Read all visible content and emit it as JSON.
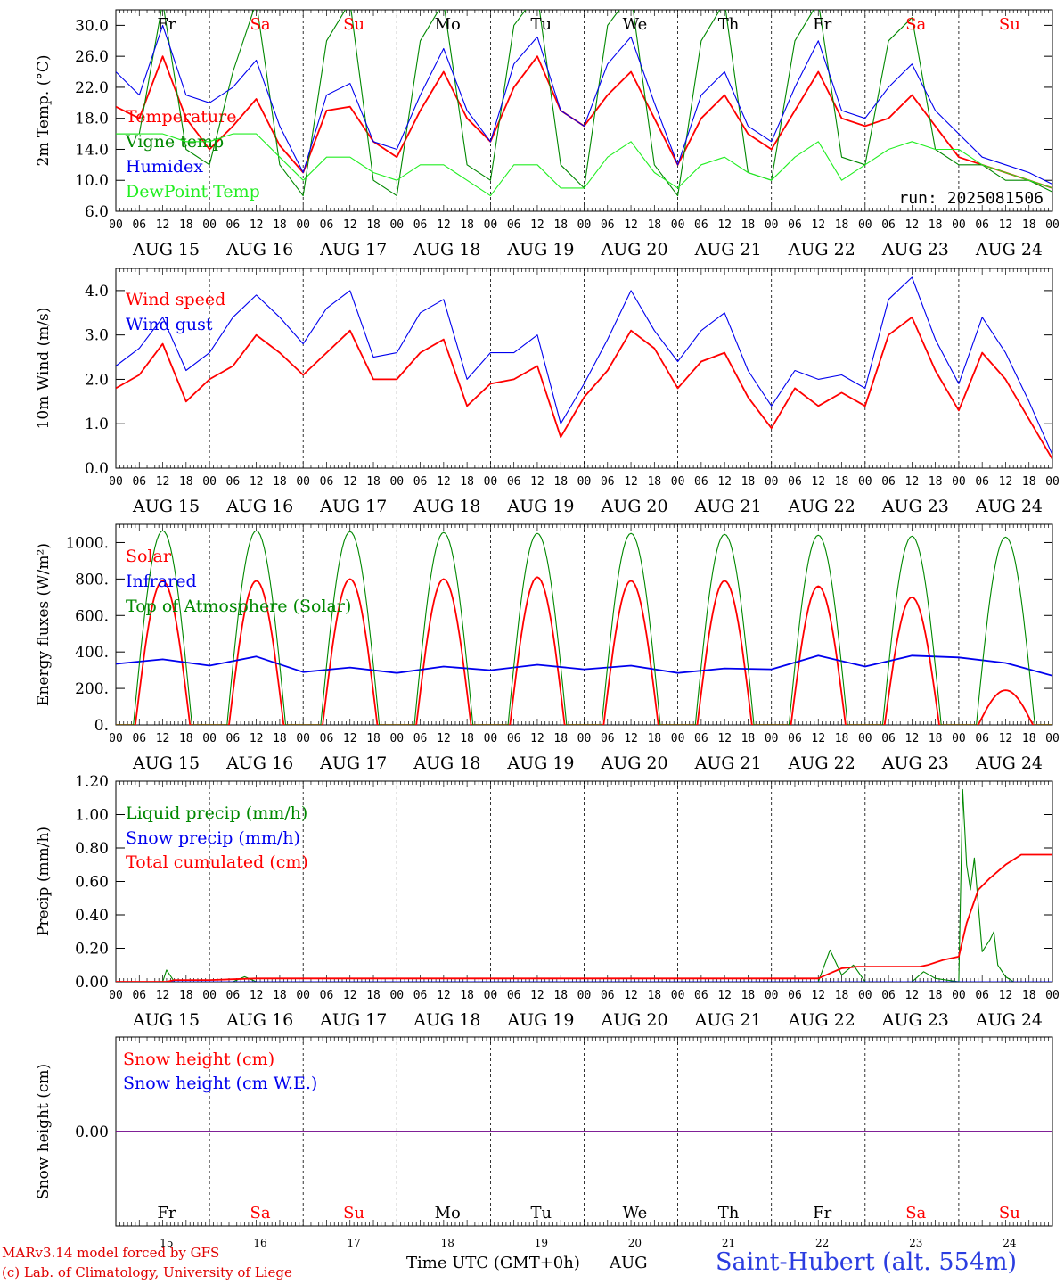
{
  "meta": {
    "credit_line1": "MARv3.14 model forced by GFS",
    "credit_line2": "(c) Lab. of Climatology, University of Liege",
    "x_title": "Time UTC (GMT+0h)",
    "x_month": "AUG",
    "station": "Saint-Hubert (alt. 554m)",
    "run_label": "run: 2025081506"
  },
  "colors": {
    "red": "#ff0000",
    "green": "#008800",
    "blue": "#0000ee",
    "lightgreen": "#22ee22"
  },
  "chart_data": {
    "type": "line",
    "time_axis": {
      "start": "2025-08-15 00 UTC",
      "days": [
        "AUG 15",
        "AUG 16",
        "AUG 17",
        "AUG 18",
        "AUG 19",
        "AUG 20",
        "AUG 21",
        "AUG 22",
        "AUG 23",
        "AUG 24"
      ],
      "hour_ticks": [
        "00",
        "06",
        "12",
        "18"
      ],
      "weekday_labels": [
        "Fr",
        "Sa",
        "Su",
        "Mo",
        "Tu",
        "We",
        "Th",
        "Fr",
        "Sa",
        "Su"
      ],
      "weekend_flags": [
        false,
        true,
        true,
        false,
        false,
        false,
        false,
        false,
        true,
        true
      ],
      "day_numbers": [
        "15",
        "16",
        "17",
        "18",
        "19",
        "20",
        "21",
        "22",
        "23",
        "24"
      ]
    },
    "panels": [
      {
        "id": "temperature",
        "ylabel": "2m Temp. (°C)",
        "ylim": [
          6.0,
          32.0
        ],
        "yticks": [
          "6.0",
          "10.0",
          "14.0",
          "18.0",
          "22.0",
          "26.0",
          "30.0"
        ],
        "ytick_values": [
          6,
          10,
          14,
          18,
          22,
          26,
          30
        ],
        "series": [
          {
            "name": "Temperature",
            "color": "red",
            "x_hours": [
              0,
              6,
              12,
              18,
              24,
              30,
              36,
              42,
              48,
              54,
              60,
              66,
              72,
              78,
              84,
              90,
              96,
              102,
              108,
              114,
              120,
              126,
              132,
              138,
              144,
              150,
              156,
              162,
              168,
              174,
              180,
              186,
              192,
              198,
              204,
              210,
              216,
              222,
              228,
              234,
              240
            ],
            "values": [
              19.5,
              18,
              26,
              18,
              14,
              17,
              20.5,
              14.5,
              11,
              19,
              19.5,
              15,
              13,
              19,
              24,
              18,
              15,
              22,
              26,
              19,
              17,
              21,
              24,
              18,
              12,
              18,
              21,
              16,
              14,
              19,
              24,
              18,
              17,
              18,
              21,
              17,
              13,
              12,
              11,
              10,
              9
            ]
          },
          {
            "name": "Vigne temp",
            "color": "green",
            "x_hours": [
              0,
              6,
              12,
              18,
              24,
              30,
              36,
              42,
              48,
              54,
              60,
              66,
              72,
              78,
              84,
              90,
              96,
              102,
              108,
              114,
              120,
              126,
              132,
              138,
              144,
              150,
              156,
              162,
              168,
              174,
              180,
              186,
              192,
              198,
              204,
              210,
              216,
              222,
              228,
              234,
              240
            ],
            "values": [
              16,
              16,
              33,
              14,
              12,
              24,
              33,
              12,
              8,
              28,
              33,
              10,
              8,
              28,
              33,
              12,
              10,
              30,
              34,
              12,
              9,
              30,
              34,
              12,
              8,
              28,
              33,
              11,
              10,
              28,
              33,
              13,
              12,
              28,
              31,
              14,
              12,
              12,
              10,
              10,
              8.5
            ]
          },
          {
            "name": "Humidex",
            "color": "blue",
            "x_hours": [
              0,
              6,
              12,
              18,
              24,
              30,
              36,
              42,
              48,
              54,
              60,
              66,
              72,
              78,
              84,
              90,
              96,
              102,
              108,
              114,
              120,
              126,
              132,
              138,
              144,
              150,
              156,
              162,
              168,
              174,
              180,
              186,
              192,
              198,
              204,
              210,
              216,
              222,
              228,
              234,
              240
            ],
            "values": [
              24,
              21,
              30,
              21,
              20,
              22,
              25.5,
              17,
              11,
              21,
              22.5,
              15,
              14,
              21,
              27,
              19,
              15,
              25,
              28.5,
              19,
              17,
              25,
              28.5,
              20,
              12,
              21,
              24,
              17,
              15,
              22,
              28,
              19,
              18,
              22,
              25,
              19,
              16,
              13,
              12,
              11,
              9.5
            ]
          },
          {
            "name": "DewPoint Temp",
            "color": "lightgreen",
            "x_hours": [
              0,
              6,
              12,
              18,
              24,
              30,
              36,
              42,
              48,
              54,
              60,
              66,
              72,
              78,
              84,
              90,
              96,
              102,
              108,
              114,
              120,
              126,
              132,
              138,
              144,
              150,
              156,
              162,
              168,
              174,
              180,
              186,
              192,
              198,
              204,
              210,
              216,
              222,
              228,
              234,
              240
            ],
            "values": [
              16,
              16,
              16,
              15,
              15,
              16,
              16,
              13,
              10,
              13,
              13,
              11,
              10,
              12,
              12,
              10,
              8,
              12,
              12,
              9,
              9,
              13,
              15,
              11,
              9,
              12,
              13,
              11,
              10,
              13,
              15,
              10,
              12,
              14,
              15,
              14,
              14,
              12,
              11,
              10,
              9
            ]
          }
        ]
      },
      {
        "id": "wind",
        "ylabel": "10m Wind (m/s)",
        "ylim": [
          0.0,
          4.5
        ],
        "yticks": [
          "0.0",
          "1.0",
          "2.0",
          "3.0",
          "4.0"
        ],
        "ytick_values": [
          0,
          1,
          2,
          3,
          4
        ],
        "series": [
          {
            "name": "Wind speed",
            "color": "red",
            "x_hours": [
              0,
              6,
              12,
              18,
              24,
              30,
              36,
              42,
              48,
              54,
              60,
              66,
              72,
              78,
              84,
              90,
              96,
              102,
              108,
              114,
              120,
              126,
              132,
              138,
              144,
              150,
              156,
              162,
              168,
              174,
              180,
              186,
              192,
              198,
              204,
              210,
              216,
              222,
              228,
              234,
              240
            ],
            "values": [
              1.8,
              2.1,
              2.8,
              1.5,
              2.0,
              2.3,
              3.0,
              2.6,
              2.1,
              2.6,
              3.1,
              2.0,
              2.0,
              2.6,
              2.9,
              1.4,
              1.9,
              2.0,
              2.3,
              0.7,
              1.6,
              2.2,
              3.1,
              2.7,
              1.8,
              2.4,
              2.6,
              1.6,
              0.9,
              1.8,
              1.4,
              1.7,
              1.4,
              3.0,
              3.4,
              2.2,
              1.3,
              2.6,
              2.0,
              1.1,
              0.2
            ]
          },
          {
            "name": "Wind gust",
            "color": "blue",
            "x_hours": [
              0,
              6,
              12,
              18,
              24,
              30,
              36,
              42,
              48,
              54,
              60,
              66,
              72,
              78,
              84,
              90,
              96,
              102,
              108,
              114,
              120,
              126,
              132,
              138,
              144,
              150,
              156,
              162,
              168,
              174,
              180,
              186,
              192,
              198,
              204,
              210,
              216,
              222,
              228,
              234,
              240
            ],
            "values": [
              2.3,
              2.7,
              3.4,
              2.2,
              2.6,
              3.4,
              3.9,
              3.4,
              2.8,
              3.6,
              4.0,
              2.5,
              2.6,
              3.5,
              3.8,
              2.0,
              2.6,
              2.6,
              3.0,
              1.0,
              1.9,
              2.9,
              4.0,
              3.1,
              2.4,
              3.1,
              3.5,
              2.2,
              1.4,
              2.2,
              2.0,
              2.1,
              1.8,
              3.8,
              4.3,
              2.9,
              1.9,
              3.4,
              2.6,
              1.5,
              0.3
            ]
          }
        ]
      },
      {
        "id": "energy",
        "ylabel": "Energy fluxes (W/m²)",
        "ylim": [
          0,
          1100
        ],
        "yticks": [
          "0.",
          "200.",
          "400.",
          "600.",
          "800.",
          "1000."
        ],
        "ytick_values": [
          0,
          200,
          400,
          600,
          800,
          1000
        ],
        "series": [
          {
            "name": "Solar",
            "color": "red",
            "daily_peaks": [
              790,
              790,
              800,
              800,
              810,
              790,
              790,
              760,
              700,
              190
            ],
            "sunrise_h": 5,
            "sunset_h": 19
          },
          {
            "name": "Infrared",
            "color": "blue",
            "x_hours": [
              0,
              12,
              24,
              36,
              48,
              60,
              72,
              84,
              96,
              108,
              120,
              132,
              144,
              156,
              168,
              180,
              192,
              204,
              216,
              228,
              240
            ],
            "values": [
              335,
              360,
              325,
              375,
              290,
              315,
              285,
              320,
              300,
              330,
              305,
              325,
              285,
              310,
              305,
              380,
              320,
              380,
              370,
              340,
              270
            ]
          },
          {
            "name": "Top of Atmosphere (Solar)",
            "color": "green",
            "daily_peaks": [
              1065,
              1065,
              1060,
              1055,
              1050,
              1050,
              1045,
              1040,
              1035,
              1030
            ],
            "sunrise_h": 4.5,
            "sunset_h": 19.5
          }
        ]
      },
      {
        "id": "precip",
        "ylabel": "Precip (mm/h)",
        "ylim": [
          0.0,
          1.2
        ],
        "yticks": [
          "0.00",
          "0.20",
          "0.40",
          "0.60",
          "0.80",
          "1.00",
          "1.20"
        ],
        "ytick_values": [
          0,
          0.2,
          0.4,
          0.6,
          0.8,
          1.0,
          1.2
        ],
        "series": [
          {
            "name": "Liquid precip (mm/h)",
            "color": "green",
            "x_hours": [
              0,
              12,
              13,
              15,
              24,
              30,
              33,
              36,
              48,
              72,
              96,
              120,
              144,
              167,
              168,
              169,
              180,
              183,
              186,
              189,
              192,
              204,
              207,
              210,
              216,
              217,
              218,
              219,
              220,
              222,
              224,
              225,
              226,
              228,
              230,
              234,
              240
            ],
            "values": [
              0,
              0,
              0.07,
              0,
              0,
              0,
              0.03,
              0,
              0,
              0,
              0,
              0,
              0,
              0,
              0,
              0,
              0,
              0.19,
              0.04,
              0.1,
              0,
              0,
              0.06,
              0.02,
              0,
              1.15,
              0.7,
              0.55,
              0.74,
              0.18,
              0.25,
              0.3,
              0.1,
              0.03,
              0,
              0,
              0
            ]
          },
          {
            "name": "Snow precip (mm/h)",
            "color": "blue",
            "x_hours": [
              0,
              240
            ],
            "values": [
              0,
              0
            ]
          },
          {
            "name": "Total cumulated (cm)",
            "color": "red",
            "x_hours": [
              0,
              13,
              15,
              24,
              36,
              180,
              183,
              186,
              190,
              206,
              208,
              212,
              216,
              218,
              221,
              224,
              228,
              232,
              240
            ],
            "values": [
              0,
              0,
              0.01,
              0.01,
              0.02,
              0.02,
              0.05,
              0.08,
              0.09,
              0.09,
              0.1,
              0.13,
              0.15,
              0.35,
              0.55,
              0.62,
              0.7,
              0.76,
              0.76
            ]
          }
        ]
      },
      {
        "id": "snow",
        "ylabel": "Snow height (cm)",
        "ylim": [
          -1,
          1
        ],
        "yticks": [
          "0.00"
        ],
        "ytick_values": [
          0
        ],
        "series": [
          {
            "name": "Snow height (cm)",
            "color": "red",
            "x_hours": [
              0,
              240
            ],
            "values": [
              0,
              0
            ]
          },
          {
            "name": "Snow height (cm W.E.)",
            "color": "blue",
            "x_hours": [
              0,
              240
            ],
            "values": [
              0,
              0
            ]
          }
        ]
      }
    ]
  }
}
